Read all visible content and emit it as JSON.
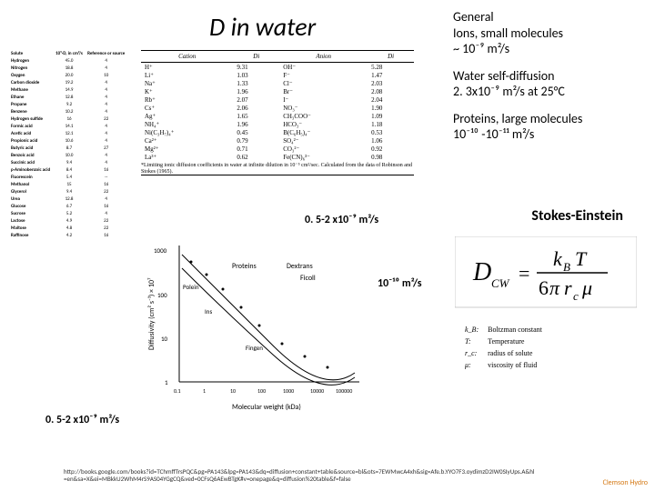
{
  "title_D": "D",
  "title_rest": " in water",
  "sidebar": {
    "general": {
      "h": "General",
      "l1": "Ions, small molecules",
      "l2": "~ 10⁻⁹ m²/s"
    },
    "water": {
      "l1": "Water self-diffusion",
      "l2": "2. 3x10⁻⁹ m²/s at 25°C"
    },
    "proteins": {
      "l1": "Proteins, large molecules",
      "l2": "10⁻¹⁰ -10⁻¹¹ m²/s"
    }
  },
  "solute_headers": [
    "Solute",
    "10⁵·D, in cm²/s",
    "Reference or source"
  ],
  "solute_rows": [
    [
      "Hydrogen",
      "45.0",
      "4"
    ],
    [
      "Nitrogen",
      "18.8",
      "4"
    ],
    [
      "Oxygen",
      "20.0",
      "10"
    ],
    [
      "Carbon dioxide",
      "19.2",
      "4"
    ],
    [
      "Methane",
      "14.9",
      "4"
    ],
    [
      "Ethane",
      "12.8",
      "4"
    ],
    [
      "Propane",
      "9.2",
      "4"
    ],
    [
      "Benzene",
      "10.2",
      "4"
    ],
    [
      "Hydrogen sulfide",
      "16",
      "22"
    ],
    [
      "Formic acid",
      "14.1",
      "4"
    ],
    [
      "Acetic acid",
      "12.1",
      "4"
    ],
    [
      "Propionic acid",
      "10.6",
      "4"
    ],
    [
      "Butyric acid",
      "8.7",
      "27"
    ],
    [
      "Benzoic acid",
      "10.0",
      "4"
    ],
    [
      "Succinic acid",
      "9.4",
      "4"
    ],
    [
      "p-Aminobenzoic acid",
      "8.4",
      "16"
    ],
    [
      "Fluorescein",
      "5.4",
      "--"
    ],
    [
      "Methanol",
      "15",
      "16"
    ],
    [
      "Glycerol",
      "9.4",
      "22"
    ],
    [
      "Urea",
      "12.8",
      "4"
    ],
    [
      "Glucose",
      "6.7",
      "16"
    ],
    [
      "Sucrose",
      "5.2",
      "4"
    ],
    [
      "Lactose",
      "4.9",
      "22"
    ],
    [
      "Maltose",
      "4.8",
      "22"
    ],
    [
      "Raffinose",
      "4.2",
      "16"
    ]
  ],
  "ion_headers": [
    "Cation",
    "Di",
    "Anion",
    "Di"
  ],
  "ion_rows": [
    [
      "H⁺",
      "9.31",
      "OH⁻",
      "5.28"
    ],
    [
      "Li⁺",
      "1.03",
      "F⁻",
      "1.47"
    ],
    [
      "Na⁺",
      "1.33",
      "Cl⁻",
      "2.03"
    ],
    [
      "K⁺",
      "1.96",
      "Br⁻",
      "2.08"
    ],
    [
      "Rb⁺",
      "2.07",
      "I⁻",
      "2.04"
    ],
    [
      "Cs⁺",
      "2.06",
      "NO₃⁻",
      "1.90"
    ],
    [
      "Ag⁺",
      "1.65",
      "CH₃COO⁻",
      "1.09"
    ],
    [
      "NH₄⁺",
      "1.96",
      "HCO₃⁻",
      "1.18"
    ],
    [
      "Ni(C₃H₇)₄⁺",
      "0.45",
      "B(C₆H₅)₄⁻",
      "0.53"
    ],
    [
      "Ca²⁺",
      "0.79",
      "SO₄²⁻",
      "1.06"
    ],
    [
      "Mg²⁺",
      "0.71",
      "CO₃²⁻",
      "0.92"
    ],
    [
      "La³⁺",
      "0.62",
      "Fe(CN)₆³⁻",
      "0.98"
    ]
  ],
  "ion_caption": "*Limiting ionic diffusion coefficients in water at infinite dilution in 10⁻⁵ cm²/sec. Calculated from the data of Robinson and Stokes (1965).",
  "annot1": "0. 5-2 x10⁻⁹ m²/s",
  "annot2": "10⁻¹⁰ m²/s",
  "annot3": "0. 5-2 x10⁻⁹ m²/s",
  "stokes": "Stokes-Einstein",
  "formula": {
    "lhs": "D",
    "sub": "CW",
    "rhs_top": "k_B T",
    "rhs_bot": "6πr_c μ"
  },
  "legend_rows": [
    [
      "k_B:",
      "Boltzman constant"
    ],
    [
      "T:",
      "Temperature"
    ],
    [
      "r_c:",
      "radius of solute"
    ],
    [
      "μ:",
      "viscosity of fluid"
    ]
  ],
  "graph": {
    "xlabel": "Molecular weight (kDa)",
    "ylabel": "Diffusivity (cm² s⁻¹) × 10⁷",
    "xticks": [
      "0.1",
      "1",
      "10",
      "100",
      "1000",
      "10000",
      "100000"
    ],
    "yticks": [
      "1",
      "10",
      "100",
      "1000"
    ],
    "labels": [
      "Proteins",
      "Dextrans",
      "Ficoll",
      "Polein",
      "Ins",
      "Fingen"
    ]
  },
  "footer_url": "http://books.google.com/books?id=TChmffTrsPQC&pg=PA143&lpg=PA143&dq=diffusion+constant+table&source=bl&ots=7EWMwcA4xh&sig=Afe.b.YYO7F3.oydimzD2IW0SIyUps.A&hl=en&sa=X&ei=MBkkU2WhM4rS9AS04YGgCQ&ved=0CFsQ6AEwBTgK#v=onepage&q=diffusion%20table&f=false",
  "footer_right": "Clemson Hydro"
}
